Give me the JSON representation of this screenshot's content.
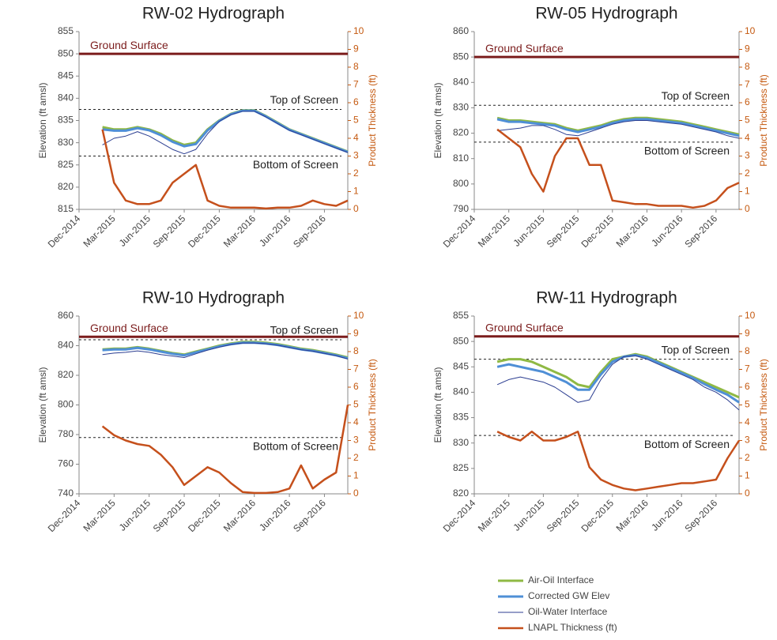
{
  "chart_data": [
    {
      "type": "line",
      "title": "RW-02 Hydrograph",
      "ylabel": "Elevation (ft amsl)",
      "y2label": "Product Thickness (ft)",
      "ylim": [
        815,
        855
      ],
      "yticks": [
        815,
        820,
        825,
        830,
        835,
        840,
        845,
        850,
        855
      ],
      "y2lim": [
        0,
        10
      ],
      "y2ticks": [
        0,
        1,
        2,
        3,
        4,
        5,
        6,
        7,
        8,
        9,
        10
      ],
      "xlim": [
        "Dec-2014",
        "Nov-2016"
      ],
      "xticks": [
        "Dec-2014",
        "Mar-2015",
        "Jun-2015",
        "Sep-2015",
        "Dec-2015",
        "Mar-2016",
        "Jun-2016",
        "Sep-2016"
      ],
      "reference_lines": [
        {
          "label": "Ground Surface",
          "value": 850
        },
        {
          "label": "Top of Screen",
          "value": 837.5
        },
        {
          "label": "Bottom of Screen",
          "value": 827
        }
      ],
      "x": [
        "Feb-2015",
        "Mar-2015",
        "Apr-2015",
        "May-2015",
        "Jun-2015",
        "Jul-2015",
        "Aug-2015",
        "Sep-2015",
        "Oct-2015",
        "Nov-2015",
        "Dec-2015",
        "Jan-2016",
        "Feb-2016",
        "Mar-2016",
        "Apr-2016",
        "May-2016",
        "Jun-2016",
        "Jul-2016",
        "Aug-2016",
        "Sep-2016",
        "Oct-2016",
        "Nov-2016"
      ],
      "series": [
        {
          "name": "Air-Oil Interface",
          "color": "#8fb944",
          "width": 3,
          "values": [
            833.5,
            833,
            833,
            833.5,
            833,
            832,
            830.5,
            829.5,
            830,
            833,
            835,
            836.5,
            837.3,
            837.3,
            836,
            834.5,
            833,
            832,
            831,
            830,
            829,
            828
          ]
        },
        {
          "name": "Corrected GW Elev",
          "color": "#4f8fd6",
          "width": 3,
          "values": [
            833,
            832.7,
            832.7,
            833.3,
            832.8,
            831.7,
            830.2,
            829.2,
            829.7,
            832.8,
            834.9,
            836.4,
            837.2,
            837.2,
            835.9,
            834.4,
            832.9,
            831.9,
            830.9,
            829.9,
            828.9,
            827.9
          ]
        },
        {
          "name": "Oil-Water Interface",
          "color": "#2c3e91",
          "width": 1,
          "values": [
            829.5,
            831,
            831.5,
            832.5,
            831.5,
            830,
            828.5,
            827.5,
            828.5,
            832,
            834.8,
            836.3,
            837.1,
            837.1,
            835.8,
            834.3,
            832.8,
            831.8,
            830.8,
            829.8,
            828.8,
            827.8
          ]
        },
        {
          "name": "LNAPL Thickness (ft)",
          "color": "#c5501c",
          "width": 2.5,
          "axis": "y2",
          "values": [
            4.5,
            1.5,
            0.5,
            0.3,
            0.3,
            0.5,
            1.5,
            2,
            2.5,
            0.5,
            0.2,
            0.1,
            0.1,
            0.1,
            0.05,
            0.1,
            0.1,
            0.2,
            0.5,
            0.3,
            0.2,
            0.5
          ]
        }
      ]
    },
    {
      "type": "line",
      "title": "RW-05 Hydrograph",
      "ylabel": "Elevation (ft amsl)",
      "y2label": "Product Thickness (ft)",
      "ylim": [
        790,
        860
      ],
      "yticks": [
        790,
        800,
        810,
        820,
        830,
        840,
        850,
        860
      ],
      "y2lim": [
        0,
        10
      ],
      "y2ticks": [
        0,
        1,
        2,
        3,
        4,
        5,
        6,
        7,
        8,
        9,
        10
      ],
      "xlim": [
        "Dec-2014",
        "Nov-2016"
      ],
      "xticks": [
        "Dec-2014",
        "Mar-2015",
        "Jun-2015",
        "Sep-2015",
        "Dec-2015",
        "Mar-2016",
        "Jun-2016",
        "Sep-2016"
      ],
      "reference_lines": [
        {
          "label": "Ground Surface",
          "value": 850
        },
        {
          "label": "Top of Screen",
          "value": 831
        },
        {
          "label": "Bottom of Screen",
          "value": 816.5
        }
      ],
      "x": [
        "Feb-2015",
        "Mar-2015",
        "Apr-2015",
        "May-2015",
        "Jun-2015",
        "Jul-2015",
        "Aug-2015",
        "Sep-2015",
        "Oct-2015",
        "Nov-2015",
        "Dec-2015",
        "Jan-2016",
        "Feb-2016",
        "Mar-2016",
        "Apr-2016",
        "May-2016",
        "Jun-2016",
        "Jul-2016",
        "Aug-2016",
        "Sep-2016",
        "Oct-2016",
        "Nov-2016"
      ],
      "series": [
        {
          "color": "#8fb944",
          "width": 3,
          "values": [
            826,
            825,
            825,
            824.5,
            824,
            823.5,
            822,
            821,
            822,
            823,
            824.5,
            825.5,
            826,
            826,
            825.5,
            825,
            824.5,
            823.5,
            822.5,
            821.5,
            820.5,
            819.5
          ]
        },
        {
          "color": "#4f8fd6",
          "width": 3,
          "values": [
            825.5,
            824.5,
            824.5,
            824,
            823.5,
            823,
            821.5,
            820.5,
            821.5,
            822.5,
            824,
            825,
            825.5,
            825.5,
            825,
            824.5,
            824,
            823,
            822,
            821,
            820,
            819
          ]
        },
        {
          "color": "#2c3e91",
          "width": 1,
          "values": [
            821,
            821.5,
            822,
            823,
            823,
            821.5,
            819.5,
            819,
            820.5,
            822,
            823.5,
            824.5,
            825,
            825,
            824.5,
            824,
            823.5,
            822.5,
            821.5,
            820.5,
            819,
            818
          ]
        },
        {
          "color": "#c5501c",
          "width": 2.5,
          "axis": "y2",
          "values": [
            4.5,
            4,
            3.5,
            2,
            1,
            3,
            4,
            4,
            2.5,
            2.5,
            0.5,
            0.4,
            0.3,
            0.3,
            0.2,
            0.2,
            0.2,
            0.1,
            0.2,
            0.5,
            1.2,
            1.5
          ]
        }
      ]
    },
    {
      "type": "line",
      "title": "RW-10 Hydrograph",
      "ylabel": "Elevation (ft amsl)",
      "y2label": "Product Thickness (ft)",
      "ylim": [
        740,
        860
      ],
      "yticks": [
        740,
        760,
        780,
        800,
        820,
        840,
        860
      ],
      "y2lim": [
        0,
        10
      ],
      "y2ticks": [
        0,
        1,
        2,
        3,
        4,
        5,
        6,
        7,
        8,
        9,
        10
      ],
      "xlim": [
        "Dec-2014",
        "Nov-2016"
      ],
      "xticks": [
        "Dec-2014",
        "Mar-2015",
        "Jun-2015",
        "Sep-2015",
        "Dec-2015",
        "Mar-2016",
        "Jun-2016",
        "Sep-2016"
      ],
      "reference_lines": [
        {
          "label": "Ground Surface",
          "value": 846
        },
        {
          "label": "Top of Screen",
          "value": 844
        },
        {
          "label": "Bottom of Screen",
          "value": 778
        }
      ],
      "x": [
        "Feb-2015",
        "Mar-2015",
        "Apr-2015",
        "May-2015",
        "Jun-2015",
        "Jul-2015",
        "Aug-2015",
        "Sep-2015",
        "Oct-2015",
        "Nov-2015",
        "Dec-2015",
        "Jan-2016",
        "Feb-2016",
        "Mar-2016",
        "Apr-2016",
        "May-2016",
        "Jun-2016",
        "Jul-2016",
        "Aug-2016",
        "Sep-2016",
        "Oct-2016",
        "Nov-2016"
      ],
      "series": [
        {
          "color": "#8fb944",
          "width": 3,
          "values": [
            837.5,
            838,
            838,
            839,
            838,
            836.5,
            835,
            834,
            836,
            838,
            840,
            841.5,
            842.5,
            842.5,
            842,
            841,
            839.5,
            838,
            837,
            835.5,
            834,
            832
          ]
        },
        {
          "color": "#4f8fd6",
          "width": 3,
          "values": [
            837,
            837.5,
            837.5,
            838.5,
            837.5,
            836,
            834.5,
            833.5,
            835.5,
            837.5,
            839.5,
            841,
            842,
            842,
            841.5,
            840.5,
            839,
            837.5,
            836.5,
            835,
            833.5,
            831.5
          ]
        },
        {
          "color": "#2c3e91",
          "width": 1,
          "values": [
            834,
            835,
            835.5,
            836.5,
            835.5,
            834,
            833,
            832,
            834.5,
            837,
            839,
            840.8,
            841.8,
            841.8,
            841.3,
            840.3,
            838.8,
            837.3,
            836.3,
            834.8,
            833.3,
            831
          ]
        },
        {
          "color": "#c5501c",
          "width": 2.5,
          "axis": "y2",
          "values": [
            3.8,
            3.3,
            3,
            2.8,
            2.7,
            2.2,
            1.5,
            0.5,
            1,
            1.5,
            1.2,
            0.6,
            0.1,
            0.05,
            0.05,
            0.1,
            0.3,
            1.6,
            0.3,
            0.8,
            1.2,
            5
          ]
        }
      ]
    },
    {
      "type": "line",
      "title": "RW-11 Hydrograph",
      "ylabel": "Elevation (ft amsl)",
      "y2label": "Product Thickness (ft)",
      "ylim": [
        820,
        855
      ],
      "yticks": [
        820,
        825,
        830,
        835,
        840,
        845,
        850,
        855
      ],
      "y2lim": [
        0,
        10
      ],
      "y2ticks": [
        0,
        1,
        2,
        3,
        4,
        5,
        6,
        7,
        8,
        9,
        10
      ],
      "xlim": [
        "Dec-2014",
        "Nov-2016"
      ],
      "xticks": [
        "Dec-2014",
        "Mar-2015",
        "Jun-2015",
        "Sep-2015",
        "Dec-2015",
        "Mar-2016",
        "Jun-2016",
        "Sep-2016"
      ],
      "reference_lines": [
        {
          "label": "Ground Surface",
          "value": 851
        },
        {
          "label": "Top of Screen",
          "value": 846.5
        },
        {
          "label": "Bottom of Screen",
          "value": 831.5
        }
      ],
      "x": [
        "Feb-2015",
        "Mar-2015",
        "Apr-2015",
        "May-2015",
        "Jun-2015",
        "Jul-2015",
        "Aug-2015",
        "Sep-2015",
        "Oct-2015",
        "Nov-2015",
        "Dec-2015",
        "Jan-2016",
        "Feb-2016",
        "Mar-2016",
        "Apr-2016",
        "May-2016",
        "Jun-2016",
        "Jul-2016",
        "Aug-2016",
        "Sep-2016",
        "Oct-2016",
        "Nov-2016"
      ],
      "series": [
        {
          "color": "#8fb944",
          "width": 3,
          "values": [
            846,
            846.5,
            846.5,
            846,
            845,
            844,
            843,
            841.5,
            841,
            844,
            846.5,
            847,
            847.5,
            847,
            846,
            845,
            844,
            843,
            842,
            841,
            840,
            839
          ]
        },
        {
          "color": "#4f8fd6",
          "width": 3,
          "values": [
            845,
            845.5,
            845,
            844.5,
            844,
            843,
            842,
            840.5,
            840.5,
            843.5,
            846,
            847,
            847.3,
            846.8,
            845.8,
            844.8,
            843.8,
            842.8,
            841.6,
            840.5,
            839.5,
            838
          ]
        },
        {
          "color": "#2c3e91",
          "width": 1,
          "values": [
            841.5,
            842.5,
            843,
            842.5,
            842,
            841,
            839.5,
            838,
            838.5,
            842.5,
            845.5,
            847,
            847.2,
            846.5,
            845.5,
            844.5,
            843.5,
            842.5,
            841,
            840,
            838.5,
            836.5
          ]
        },
        {
          "color": "#c5501c",
          "width": 2.5,
          "axis": "y2",
          "values": [
            3.5,
            3.2,
            3,
            3.5,
            3,
            3,
            3.2,
            3.5,
            1.5,
            0.8,
            0.5,
            0.3,
            0.2,
            0.3,
            0.4,
            0.5,
            0.6,
            0.6,
            0.7,
            0.8,
            2,
            3
          ]
        }
      ]
    }
  ]
}
